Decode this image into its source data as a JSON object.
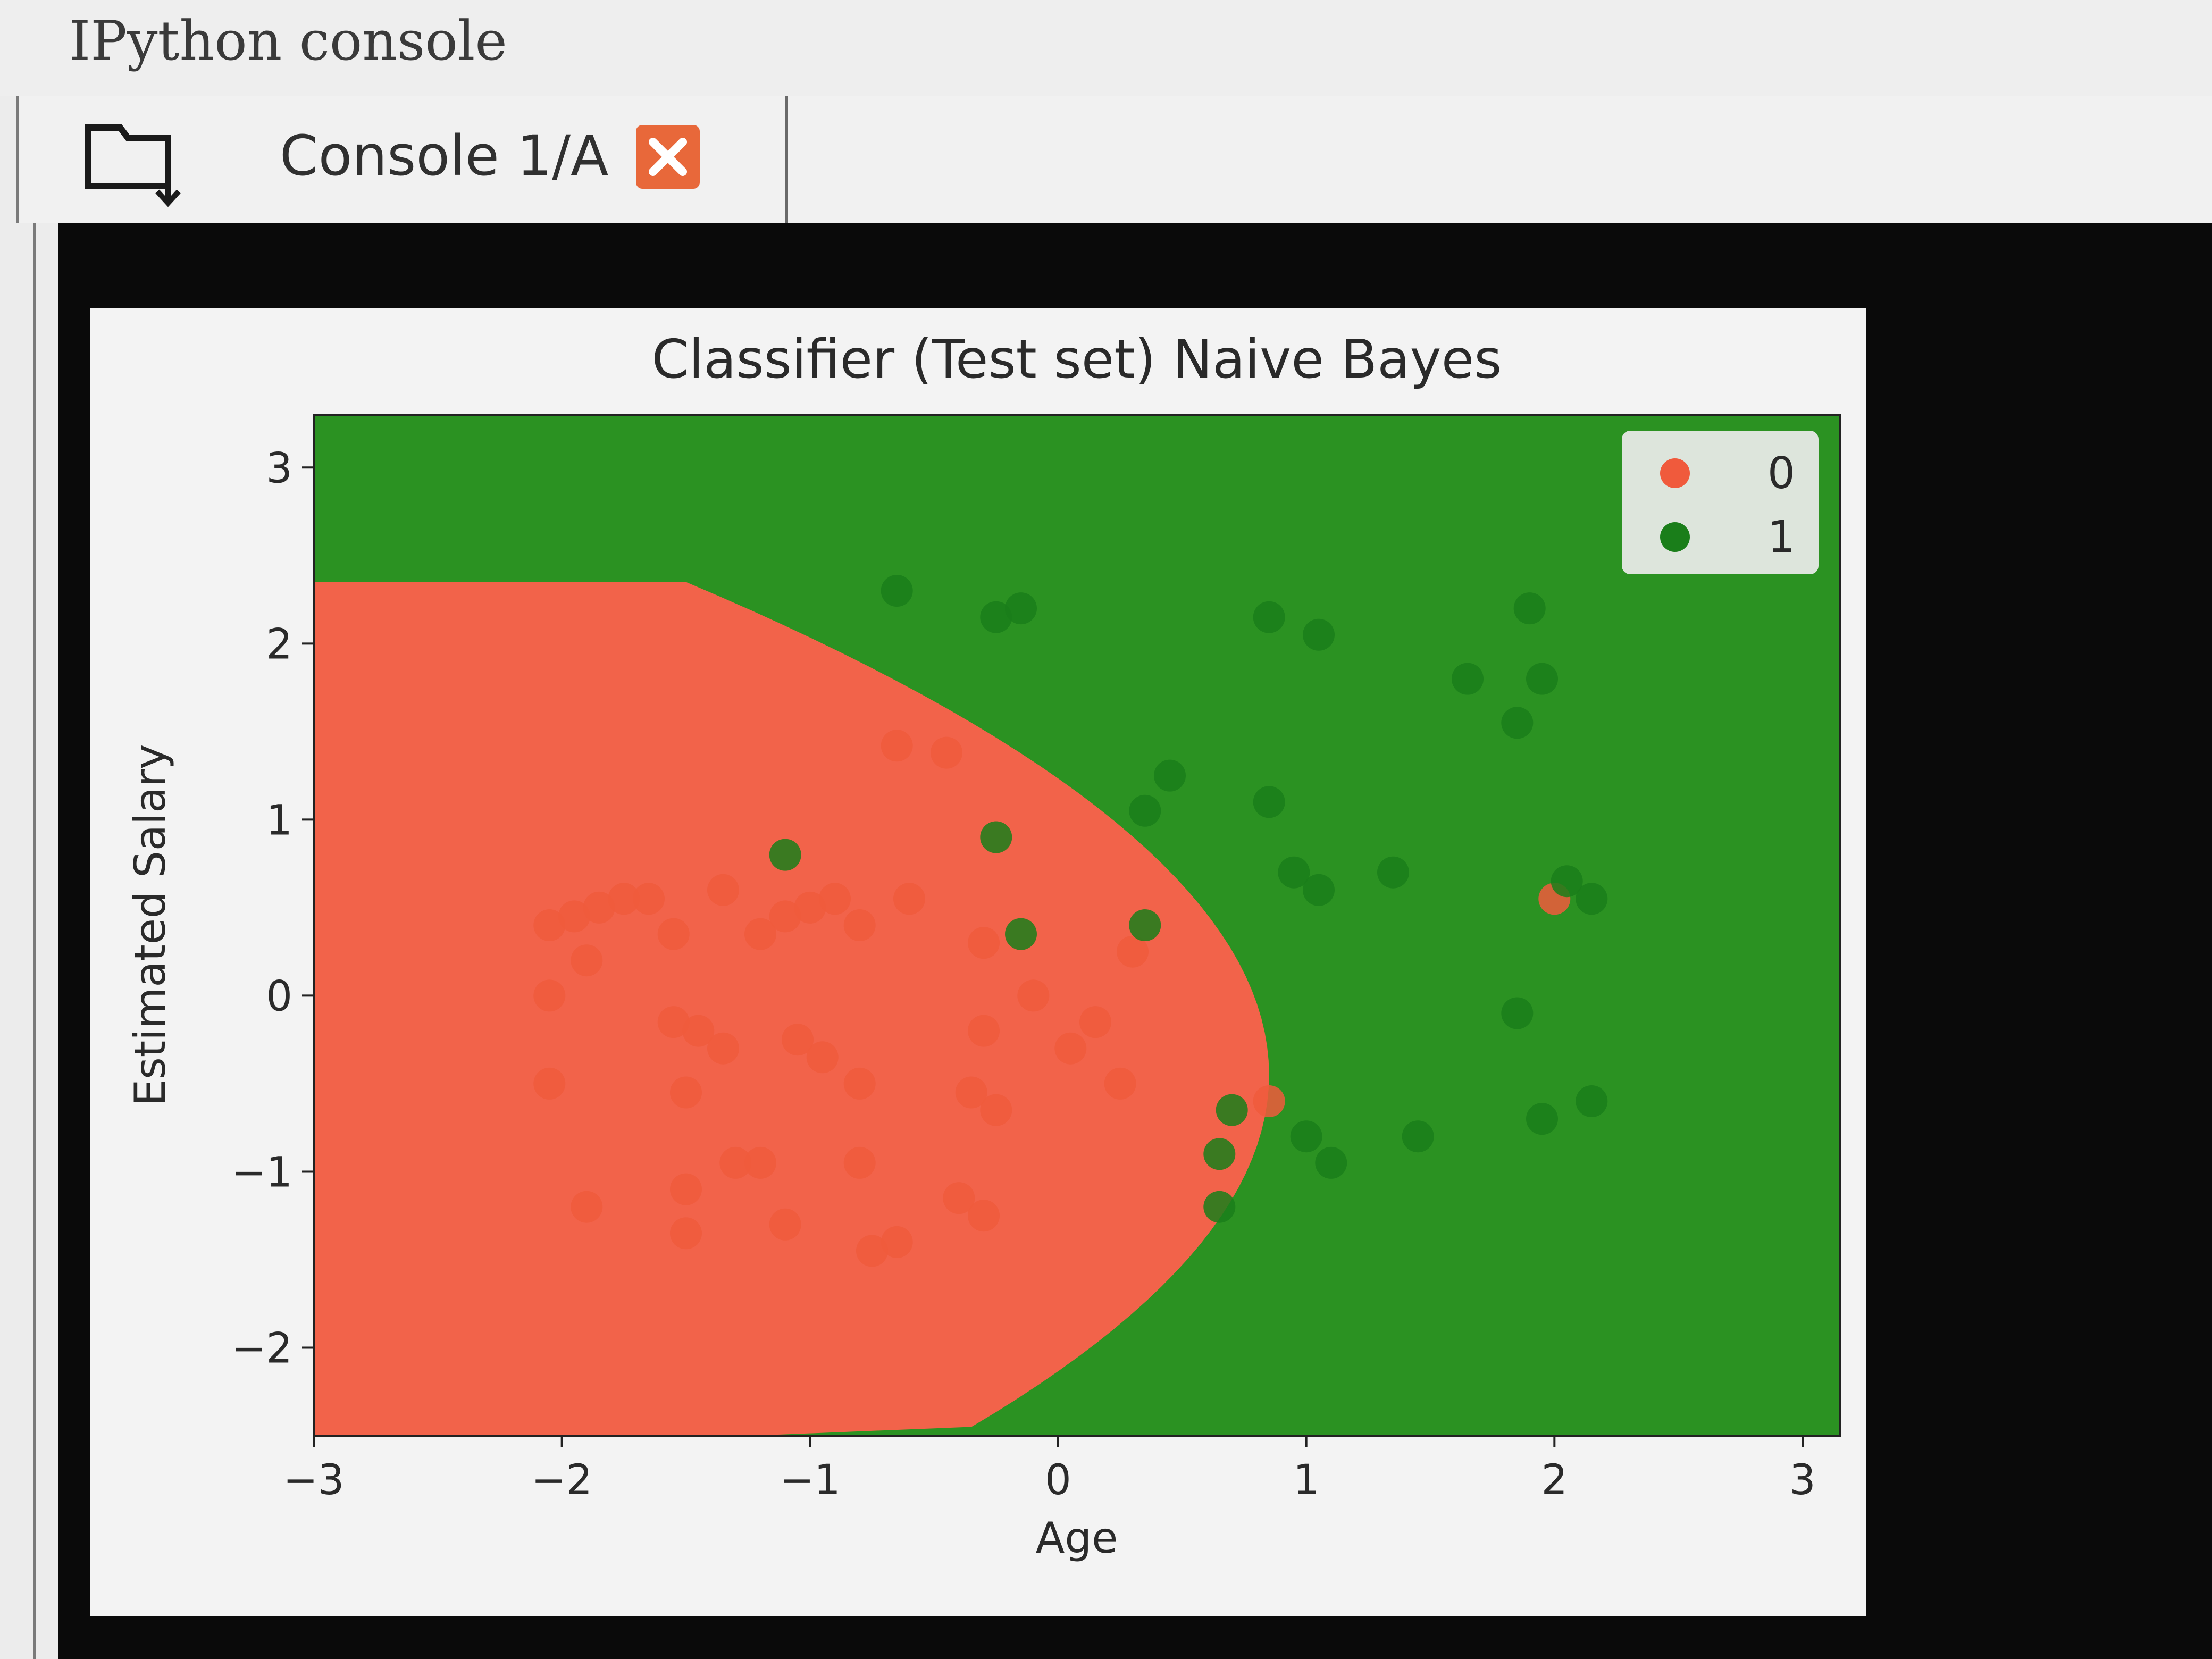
{
  "pane": {
    "title": "IPython console"
  },
  "tabs": [
    {
      "label": "Console 1/A"
    }
  ],
  "icons": {
    "browse": "folder-browse-icon",
    "close": "close-icon"
  },
  "colors": {
    "class0": "#f05a3c",
    "class1": "#1a7e1a",
    "region0": "#f2634a",
    "region1": "#2b9222",
    "close": "#e8683a"
  },
  "chart_data": {
    "type": "scatter",
    "title": "Classifier (Test set) Naive Bayes",
    "xlabel": "Age",
    "ylabel": "Estimated Salary",
    "xlim": [
      -3,
      3.15
    ],
    "ylim": [
      -2.5,
      3.3
    ],
    "xticks": [
      "−3",
      "−2",
      "−1",
      "0",
      "1",
      "2",
      "3"
    ],
    "yticks": [
      "−2",
      "−1",
      "0",
      "1",
      "2",
      "3"
    ],
    "legend": {
      "placement": "top-right",
      "entries": [
        "0",
        "1"
      ]
    },
    "series": [
      {
        "name": "0",
        "color": "#f05a3c",
        "points": [
          [
            -2.05,
            0.4
          ],
          [
            -1.95,
            0.45
          ],
          [
            -1.85,
            0.5
          ],
          [
            -1.75,
            0.55
          ],
          [
            -1.65,
            0.55
          ],
          [
            -1.55,
            0.35
          ],
          [
            -1.9,
            0.2
          ],
          [
            -2.05,
            0.0
          ],
          [
            -2.05,
            -0.5
          ],
          [
            -1.55,
            -0.15
          ],
          [
            -1.45,
            -0.2
          ],
          [
            -1.35,
            -0.3
          ],
          [
            -1.5,
            -0.55
          ],
          [
            -1.35,
            0.6
          ],
          [
            -1.2,
            0.35
          ],
          [
            -1.1,
            0.45
          ],
          [
            -1.0,
            0.5
          ],
          [
            -0.9,
            0.55
          ],
          [
            -0.8,
            0.4
          ],
          [
            -1.05,
            -0.25
          ],
          [
            -0.95,
            -0.35
          ],
          [
            -0.8,
            -0.5
          ],
          [
            -1.3,
            -0.95
          ],
          [
            -1.2,
            -0.95
          ],
          [
            -0.8,
            -0.95
          ],
          [
            -1.9,
            -1.2
          ],
          [
            -1.5,
            -1.1
          ],
          [
            -1.5,
            -1.35
          ],
          [
            -1.1,
            -1.3
          ],
          [
            -0.65,
            -1.4
          ],
          [
            -0.75,
            -1.45
          ],
          [
            -0.4,
            -1.15
          ],
          [
            -0.3,
            -1.25
          ],
          [
            -0.6,
            0.55
          ],
          [
            -0.65,
            1.42
          ],
          [
            -0.45,
            1.38
          ],
          [
            -0.3,
            0.3
          ],
          [
            -0.3,
            -0.2
          ],
          [
            -0.35,
            -0.55
          ],
          [
            -0.25,
            -0.65
          ],
          [
            -0.1,
            0.0
          ],
          [
            0.05,
            -0.3
          ],
          [
            0.25,
            -0.5
          ],
          [
            0.15,
            -0.15
          ],
          [
            0.3,
            0.25
          ],
          [
            0.85,
            -0.6
          ],
          [
            2.0,
            0.55
          ]
        ]
      },
      {
        "name": "1",
        "color": "#1a7e1a",
        "points": [
          [
            -0.65,
            2.3
          ],
          [
            -0.25,
            2.15
          ],
          [
            -0.15,
            2.2
          ],
          [
            0.85,
            2.15
          ],
          [
            1.05,
            2.05
          ],
          [
            1.65,
            1.8
          ],
          [
            1.9,
            2.2
          ],
          [
            1.95,
            1.8
          ],
          [
            1.85,
            1.55
          ],
          [
            -1.1,
            0.8
          ],
          [
            -0.25,
            0.9
          ],
          [
            -0.15,
            0.35
          ],
          [
            0.35,
            0.4
          ],
          [
            0.35,
            1.05
          ],
          [
            0.45,
            1.25
          ],
          [
            0.85,
            1.1
          ],
          [
            0.95,
            0.7
          ],
          [
            1.05,
            0.6
          ],
          [
            1.35,
            0.7
          ],
          [
            2.05,
            0.65
          ],
          [
            2.15,
            0.55
          ],
          [
            0.7,
            -0.65
          ],
          [
            0.65,
            -0.9
          ],
          [
            0.65,
            -1.2
          ],
          [
            1.0,
            -0.8
          ],
          [
            1.1,
            -0.95
          ],
          [
            1.45,
            -0.8
          ],
          [
            1.85,
            -0.1
          ],
          [
            1.95,
            -0.7
          ],
          [
            2.15,
            -0.6
          ]
        ]
      }
    ]
  }
}
